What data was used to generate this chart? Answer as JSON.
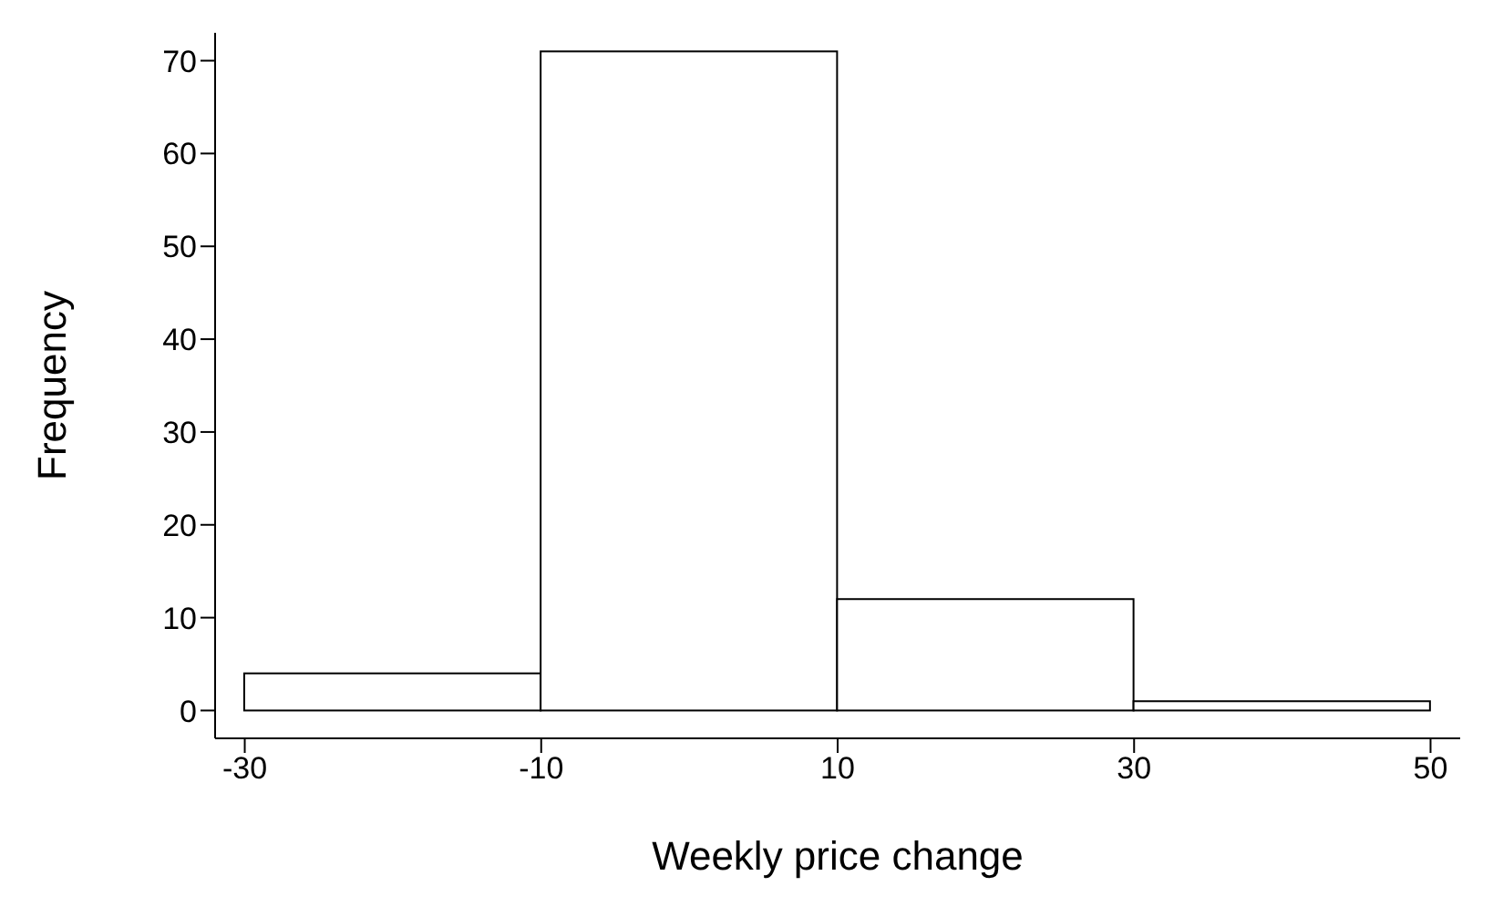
{
  "chart_data": {
    "type": "histogram",
    "xlabel": "Weekly price change",
    "ylabel": "Frequency",
    "bins": [
      -30,
      -10,
      10,
      30,
      50
    ],
    "values": [
      4,
      71,
      12,
      1
    ],
    "color": "#ffffff",
    "xlim": [
      -32,
      52
    ],
    "xticks": [
      -30,
      -10,
      10,
      30,
      50
    ],
    "ylim": [
      -3,
      73
    ],
    "yticks": [
      0,
      10,
      20,
      30,
      40,
      50,
      60,
      70
    ],
    "grid": false
  }
}
